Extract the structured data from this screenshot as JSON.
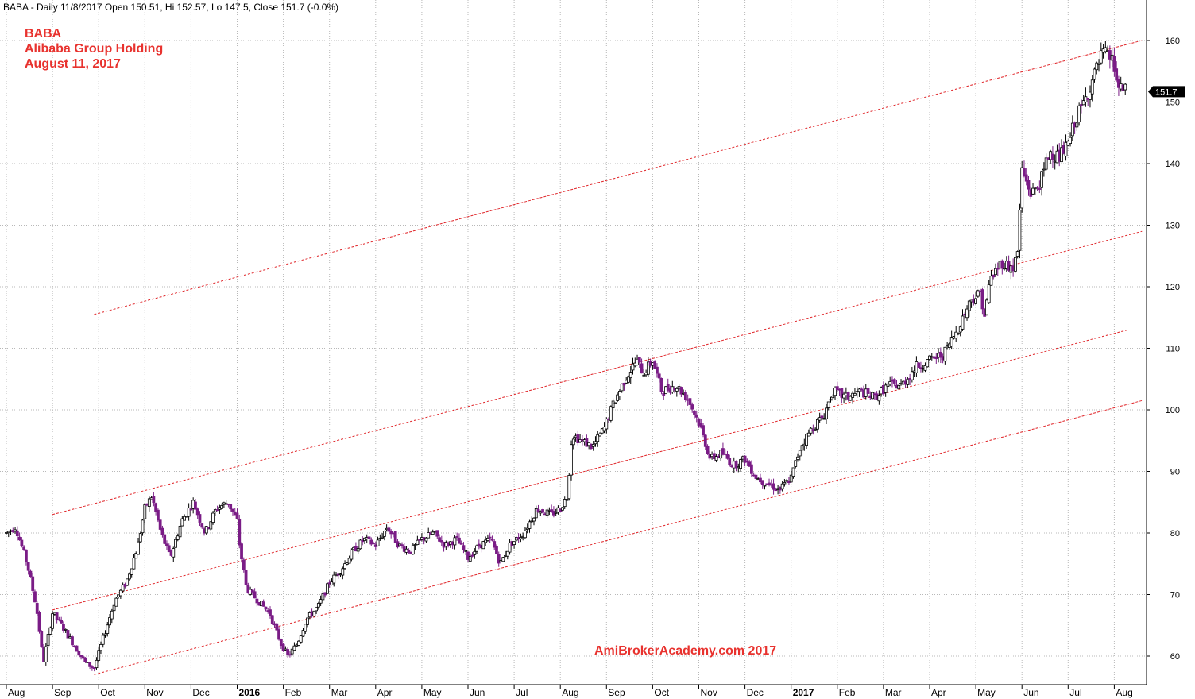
{
  "chart_data": {
    "type": "candlestick",
    "header": "BABA - Daily 11/8/2017 Open 150.51, Hi 152.57, Lo 147.5, Close 151.7 (-0.0%)",
    "annotations": [
      "BABA",
      "Alibaba Group Holding",
      "August 11, 2017"
    ],
    "watermark": "AmiBrokerAcademy.com  2017",
    "last_price_label": "151.7",
    "last_price": 151.7,
    "ylim": [
      55,
      165
    ],
    "yticks": [
      60,
      70,
      80,
      90,
      100,
      110,
      120,
      130,
      140,
      150,
      160
    ],
    "xlabels": [
      {
        "label": "Aug",
        "month": 0
      },
      {
        "label": "Sep",
        "month": 1
      },
      {
        "label": "Oct",
        "month": 2
      },
      {
        "label": "Nov",
        "month": 3
      },
      {
        "label": "Dec",
        "month": 4
      },
      {
        "label": "2016",
        "month": 5,
        "bold": true
      },
      {
        "label": "Feb",
        "month": 6
      },
      {
        "label": "Mar",
        "month": 7
      },
      {
        "label": "Apr",
        "month": 8
      },
      {
        "label": "May",
        "month": 9
      },
      {
        "label": "Jun",
        "month": 10
      },
      {
        "label": "Jul",
        "month": 11
      },
      {
        "label": "Aug",
        "month": 12
      },
      {
        "label": "Sep",
        "month": 13
      },
      {
        "label": "Oct",
        "month": 14
      },
      {
        "label": "Nov",
        "month": 15
      },
      {
        "label": "Dec",
        "month": 16
      },
      {
        "label": "2017",
        "month": 17,
        "bold": true
      },
      {
        "label": "Feb",
        "month": 18
      },
      {
        "label": "Mar",
        "month": 19
      },
      {
        "label": "Apr",
        "month": 20
      },
      {
        "label": "May",
        "month": 21
      },
      {
        "label": "Jun",
        "month": 22
      },
      {
        "label": "Jul",
        "month": 23
      },
      {
        "label": "Aug",
        "month": 24
      }
    ],
    "channel_lines": [
      {
        "start": [
          1.9,
          115.5
        ],
        "end": [
          24.6,
          160
        ]
      },
      {
        "start": [
          1.0,
          83
        ],
        "end": [
          24.6,
          129
        ]
      },
      {
        "start": [
          1.0,
          67.5
        ],
        "end": [
          24.3,
          113
        ]
      },
      {
        "start": [
          1.9,
          57
        ],
        "end": [
          24.6,
          101.5
        ]
      }
    ],
    "price_path": [
      [
        0.0,
        80
      ],
      [
        0.2,
        81
      ],
      [
        0.45,
        75
      ],
      [
        0.65,
        68
      ],
      [
        0.8,
        59
      ],
      [
        1.0,
        67
      ],
      [
        1.2,
        65
      ],
      [
        1.45,
        62
      ],
      [
        1.7,
        59
      ],
      [
        1.9,
        58
      ],
      [
        2.1,
        63
      ],
      [
        2.35,
        69
      ],
      [
        2.6,
        72
      ],
      [
        2.85,
        78
      ],
      [
        3.0,
        84
      ],
      [
        3.15,
        86
      ],
      [
        3.35,
        80
      ],
      [
        3.55,
        76
      ],
      [
        3.8,
        82
      ],
      [
        4.05,
        85
      ],
      [
        4.3,
        80
      ],
      [
        4.55,
        84
      ],
      [
        4.8,
        85
      ],
      [
        5.0,
        82
      ],
      [
        5.05,
        78
      ],
      [
        5.2,
        71
      ],
      [
        5.45,
        69
      ],
      [
        5.7,
        67
      ],
      [
        5.95,
        62
      ],
      [
        6.1,
        60
      ],
      [
        6.3,
        62
      ],
      [
        6.5,
        66
      ],
      [
        6.75,
        68
      ],
      [
        7.0,
        72
      ],
      [
        7.25,
        74
      ],
      [
        7.5,
        77
      ],
      [
        7.75,
        79
      ],
      [
        8.0,
        78
      ],
      [
        8.25,
        81
      ],
      [
        8.5,
        78
      ],
      [
        8.75,
        77
      ],
      [
        9.0,
        79
      ],
      [
        9.25,
        80
      ],
      [
        9.5,
        78
      ],
      [
        9.75,
        79
      ],
      [
        10.0,
        76
      ],
      [
        10.25,
        78
      ],
      [
        10.5,
        79
      ],
      [
        10.7,
        75
      ],
      [
        10.9,
        78
      ],
      [
        11.2,
        80
      ],
      [
        11.5,
        84
      ],
      [
        11.8,
        83
      ],
      [
        12.0,
        84
      ],
      [
        12.15,
        86
      ],
      [
        12.25,
        96
      ],
      [
        12.45,
        95
      ],
      [
        12.7,
        94
      ],
      [
        12.95,
        97
      ],
      [
        13.15,
        101
      ],
      [
        13.4,
        105
      ],
      [
        13.65,
        108
      ],
      [
        13.8,
        106
      ],
      [
        14.0,
        108
      ],
      [
        14.2,
        103
      ],
      [
        14.5,
        104
      ],
      [
        14.75,
        102
      ],
      [
        15.0,
        98
      ],
      [
        15.25,
        92
      ],
      [
        15.5,
        93
      ],
      [
        15.75,
        91
      ],
      [
        16.0,
        92
      ],
      [
        16.25,
        89
      ],
      [
        16.5,
        88
      ],
      [
        16.75,
        87
      ],
      [
        17.0,
        89
      ],
      [
        17.2,
        94
      ],
      [
        17.45,
        97
      ],
      [
        17.7,
        99
      ],
      [
        17.9,
        103
      ],
      [
        18.2,
        102
      ],
      [
        18.5,
        103
      ],
      [
        18.8,
        102
      ],
      [
        19.1,
        104
      ],
      [
        19.4,
        104
      ],
      [
        19.7,
        107
      ],
      [
        20.0,
        108
      ],
      [
        20.3,
        109
      ],
      [
        20.6,
        113
      ],
      [
        20.9,
        118
      ],
      [
        21.1,
        119
      ],
      [
        21.2,
        115
      ],
      [
        21.3,
        121
      ],
      [
        21.55,
        124
      ],
      [
        21.8,
        123
      ],
      [
        21.9,
        125
      ],
      [
        22.0,
        139
      ],
      [
        22.2,
        135
      ],
      [
        22.4,
        137
      ],
      [
        22.6,
        142
      ],
      [
        22.8,
        141
      ],
      [
        23.0,
        143
      ],
      [
        23.15,
        147
      ],
      [
        23.35,
        150
      ],
      [
        23.55,
        154
      ],
      [
        23.75,
        158
      ],
      [
        23.95,
        157
      ],
      [
        24.1,
        152
      ],
      [
        24.25,
        151.7
      ]
    ]
  }
}
